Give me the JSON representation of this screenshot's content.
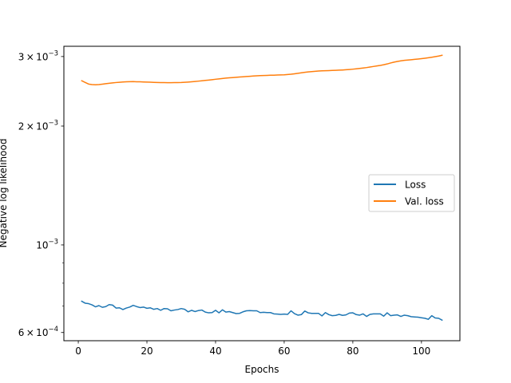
{
  "chart_data": {
    "type": "line",
    "title": "",
    "xlabel": "Epochs",
    "ylabel": "Negative log likelihood",
    "xlim": [
      -4.2,
      111.2
    ],
    "ylim": [
      0.000572,
      0.003185
    ],
    "yscale": "log",
    "grid": false,
    "legend_position": "center-right",
    "x_ticks": [
      0,
      20,
      40,
      60,
      80,
      100
    ],
    "x_tick_labels": [
      "0",
      "20",
      "40",
      "60",
      "80",
      "100"
    ],
    "y_major_ticks": [
      0.0006,
      0.001,
      0.002,
      0.003
    ],
    "y_tick_labels": [
      {
        "base": "6",
        "exp": "−4"
      },
      {
        "base": "10",
        "exp": "−3"
      },
      {
        "base": "2",
        "exp": "−3"
      },
      {
        "base": "3",
        "exp": "−3"
      }
    ],
    "y_minor_ticks": [
      0.0007,
      0.0008,
      0.0009
    ],
    "series": [
      {
        "name": "Loss",
        "color": "#1f77b4",
        "x": [
          1,
          2,
          3,
          4,
          5,
          6,
          7,
          8,
          9,
          10,
          11,
          12,
          13,
          14,
          15,
          16,
          17,
          18,
          19,
          20,
          21,
          22,
          23,
          24,
          25,
          26,
          27,
          28,
          29,
          30,
          31,
          32,
          33,
          34,
          35,
          36,
          37,
          38,
          39,
          40,
          41,
          42,
          43,
          44,
          45,
          46,
          47,
          48,
          49,
          50,
          51,
          52,
          53,
          54,
          55,
          56,
          57,
          58,
          59,
          60,
          61,
          62,
          63,
          64,
          65,
          66,
          67,
          68,
          69,
          70,
          71,
          72,
          73,
          74,
          75,
          76,
          77,
          78,
          79,
          80,
          81,
          82,
          83,
          84,
          85,
          86,
          87,
          88,
          89,
          90,
          91,
          92,
          93,
          94,
          95,
          96,
          97,
          98,
          99,
          100,
          101,
          102,
          103,
          104,
          105,
          106
        ],
        "values": [
          0.00072,
          0.000712,
          0.00071,
          0.000705,
          0.000697,
          0.000702,
          0.000695,
          0.000698,
          0.000706,
          0.000704,
          0.000692,
          0.000693,
          0.000686,
          0.000692,
          0.000696,
          0.000703,
          0.000698,
          0.000694,
          0.000696,
          0.000691,
          0.000693,
          0.000687,
          0.00069,
          0.000683,
          0.00069,
          0.000689,
          0.000681,
          0.000684,
          0.000686,
          0.00069,
          0.000687,
          0.000677,
          0.000683,
          0.000678,
          0.000682,
          0.000684,
          0.000676,
          0.000673,
          0.000674,
          0.000683,
          0.000673,
          0.000685,
          0.000676,
          0.000678,
          0.000674,
          0.00067,
          0.000671,
          0.000677,
          0.000681,
          0.000682,
          0.000681,
          0.000681,
          0.000674,
          0.000675,
          0.000674,
          0.000674,
          0.000669,
          0.000668,
          0.000667,
          0.000668,
          0.000667,
          0.000681,
          0.00067,
          0.000664,
          0.000666,
          0.00068,
          0.000673,
          0.000671,
          0.000671,
          0.000671,
          0.000661,
          0.000674,
          0.000666,
          0.000662,
          0.000663,
          0.000667,
          0.000663,
          0.000665,
          0.000672,
          0.000673,
          0.000666,
          0.000664,
          0.000669,
          0.000659,
          0.000667,
          0.000669,
          0.000669,
          0.000669,
          0.00066,
          0.000673,
          0.000662,
          0.000664,
          0.000665,
          0.000659,
          0.000664,
          0.000662,
          0.000658,
          0.000657,
          0.000656,
          0.000654,
          0.000652,
          0.000648,
          0.000662,
          0.000653,
          0.000652,
          0.000645
        ]
      },
      {
        "name": "Val. loss",
        "color": "#ff7f0e",
        "x": [
          1,
          2,
          3,
          4,
          5,
          6,
          7,
          8,
          9,
          10,
          11,
          12,
          13,
          14,
          15,
          16,
          17,
          18,
          19,
          20,
          21,
          22,
          23,
          24,
          25,
          26,
          27,
          28,
          29,
          30,
          31,
          32,
          33,
          34,
          35,
          36,
          37,
          38,
          39,
          40,
          41,
          42,
          43,
          44,
          45,
          46,
          47,
          48,
          49,
          50,
          51,
          52,
          53,
          54,
          55,
          56,
          57,
          58,
          59,
          60,
          61,
          62,
          63,
          64,
          65,
          66,
          67,
          68,
          69,
          70,
          71,
          72,
          73,
          74,
          75,
          76,
          77,
          78,
          79,
          80,
          81,
          82,
          83,
          84,
          85,
          86,
          87,
          88,
          89,
          90,
          91,
          92,
          93,
          94,
          95,
          96,
          97,
          98,
          99,
          100,
          101,
          102,
          103,
          104,
          105,
          106
        ],
        "values": [
          0.002605,
          0.00258,
          0.002555,
          0.002548,
          0.002545,
          0.002547,
          0.002554,
          0.002561,
          0.002567,
          0.002573,
          0.002578,
          0.002582,
          0.002586,
          0.002589,
          0.002591,
          0.002592,
          0.00259,
          0.002589,
          0.002587,
          0.002585,
          0.002583,
          0.002581,
          0.002579,
          0.002578,
          0.002577,
          0.002576,
          0.002576,
          0.002577,
          0.002578,
          0.002579,
          0.002582,
          0.002585,
          0.002589,
          0.002594,
          0.002599,
          0.002604,
          0.00261,
          0.002615,
          0.002621,
          0.002628,
          0.002634,
          0.00264,
          0.002645,
          0.00265,
          0.002654,
          0.002658,
          0.002662,
          0.002666,
          0.00267,
          0.002674,
          0.002678,
          0.002681,
          0.002684,
          0.002686,
          0.002688,
          0.00269,
          0.002691,
          0.002693,
          0.002695,
          0.002697,
          0.002701,
          0.002706,
          0.002713,
          0.00272,
          0.002728,
          0.002736,
          0.002742,
          0.002748,
          0.002753,
          0.002757,
          0.00276,
          0.002762,
          0.002764,
          0.002766,
          0.002768,
          0.002771,
          0.002774,
          0.002778,
          0.002782,
          0.002787,
          0.002793,
          0.002799,
          0.002806,
          0.002813,
          0.002822,
          0.002831,
          0.00284,
          0.002849,
          0.00286,
          0.002873,
          0.002889,
          0.002904,
          0.002916,
          0.002926,
          0.002934,
          0.002939,
          0.002945,
          0.002951,
          0.002957,
          0.002964,
          0.002971,
          0.002979,
          0.002988,
          0.002998,
          0.003009,
          0.003022
        ]
      }
    ]
  }
}
